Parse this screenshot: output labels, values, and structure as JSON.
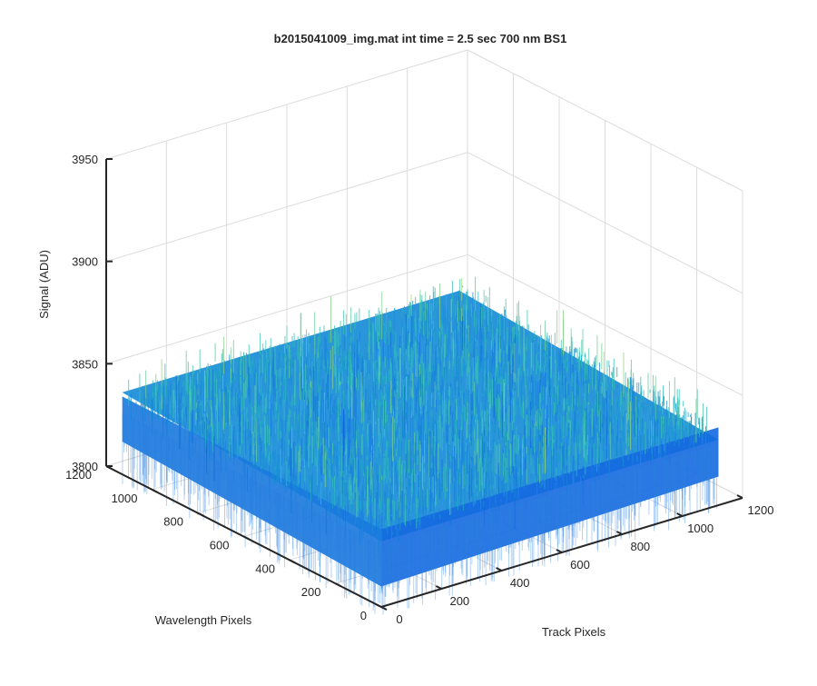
{
  "chart_data": {
    "type": "surface",
    "title": "b2015041009_img.mat int time = 2.5 sec  700 nm BS1",
    "xlabel": "Track Pixels",
    "ylabel": "Wavelength Pixels",
    "zlabel": "Signal (ADU)",
    "xlim": [
      0,
      1200
    ],
    "ylim": [
      0,
      1200
    ],
    "zlim": [
      3800,
      3950
    ],
    "xticks": [
      0,
      200,
      400,
      600,
      800,
      1000,
      1200
    ],
    "yticks": [
      0,
      200,
      400,
      600,
      800,
      1000,
      1200
    ],
    "zticks": [
      3800,
      3850,
      3900,
      3950
    ],
    "xtick_labels": [
      "0",
      "200",
      "400",
      "600",
      "800",
      "1000",
      "1200"
    ],
    "ytick_labels": [
      "0",
      "200",
      "400",
      "600",
      "800",
      "1000",
      "1200"
    ],
    "ztick_labels": [
      "3800",
      "3850",
      "3900",
      "3950"
    ],
    "surface_extent": {
      "x": [
        0,
        1120
      ],
      "y": [
        0,
        1130
      ]
    },
    "signal_mean": 3838,
    "signal_noise_range": [
      3815,
      3862
    ],
    "grid": true,
    "colormap": "parula",
    "colors": {
      "low": "#0a5ee0",
      "mid": "#1a9fd0",
      "high": "#3ec8b0",
      "spike": "#b8d870"
    }
  }
}
